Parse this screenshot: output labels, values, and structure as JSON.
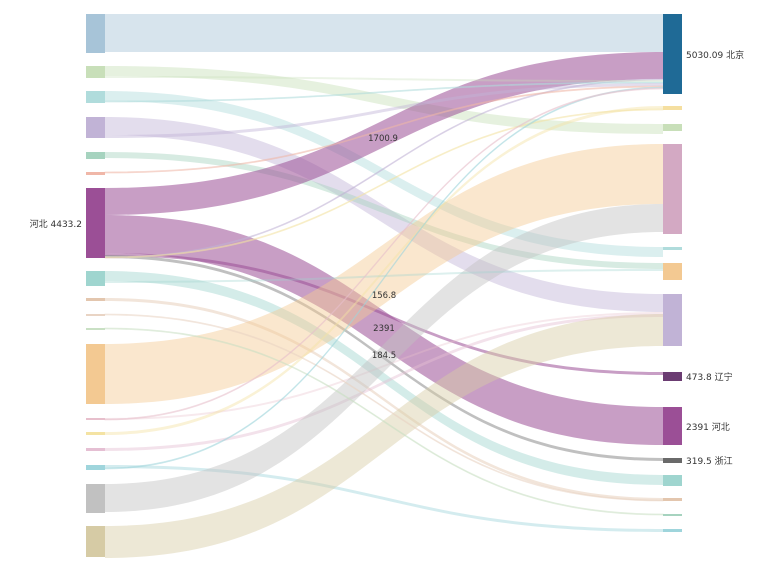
{
  "chart_data": {
    "type": "sankey",
    "title": "",
    "sources": [
      {
        "name": "",
        "color": "#a7c4d8"
      },
      {
        "name": "",
        "color": "#c8dfb9"
      },
      {
        "name": "",
        "color": "#b0dcdc"
      },
      {
        "name": "",
        "color": "#c1b3d6"
      },
      {
        "name": "",
        "color": "#a6d3bf"
      },
      {
        "name": "",
        "color": "#f0b7a8"
      },
      {
        "name": "河北",
        "value": 4433.2,
        "label": "河北 4433.2",
        "color": "#9b4f96"
      },
      {
        "name": "",
        "color": "#9fd5cf"
      },
      {
        "name": "",
        "color": "#e3c6ae"
      },
      {
        "name": "",
        "color": "#e9d4c4"
      },
      {
        "name": "",
        "color": "#c9e0c4"
      },
      {
        "name": "",
        "color": "#f3c992"
      },
      {
        "name": "",
        "color": "#e7bfcc"
      },
      {
        "name": "",
        "color": "#f4e3a3"
      },
      {
        "name": "",
        "color": "#e5bfd3"
      },
      {
        "name": "",
        "color": "#9fd5dc"
      },
      {
        "name": "",
        "color": "#c1c1c1"
      },
      {
        "name": "",
        "color": "#d6cba5"
      }
    ],
    "targets": [
      {
        "name": "北京",
        "value": 5030.09,
        "label": "5030.09 北京",
        "color": "#1f6a96"
      },
      {
        "name": "",
        "color": "#f5dfa0"
      },
      {
        "name": "",
        "color": "#c8dfb9"
      },
      {
        "name": "",
        "color": "#d3a9c3"
      },
      {
        "name": "",
        "color": "#b0dcdc"
      },
      {
        "name": "",
        "color": "#f3c992"
      },
      {
        "name": "",
        "color": "#c1b3d6"
      },
      {
        "name": "辽宁",
        "value": 473.8,
        "label": "473.8 辽宁",
        "color": "#6b3c72"
      },
      {
        "name": "河北",
        "value": 2391,
        "label": "2391 河北",
        "color": "#9b4f96"
      },
      {
        "name": "浙江",
        "value": 319.5,
        "label": "319.5 浙江",
        "color": "#6a6a6a"
      },
      {
        "name": "",
        "color": "#9fd5cf"
      },
      {
        "name": "",
        "color": "#e3c6ae"
      },
      {
        "name": "",
        "color": "#a6d3bf"
      },
      {
        "name": "",
        "color": "#9fd5dc"
      }
    ],
    "links": [
      {
        "source": 0,
        "target": 0,
        "weight": 38,
        "color": "#a7c4d8"
      },
      {
        "source": 1,
        "target": 2,
        "weight": 10,
        "color": "#c8dfb9"
      },
      {
        "source": 2,
        "target": 4,
        "weight": 10,
        "color": "#b0dcdc"
      },
      {
        "source": 3,
        "target": 6,
        "weight": 18,
        "color": "#c1b3d6"
      },
      {
        "source": 4,
        "target": 5,
        "weight": 6,
        "color": "#a6d3bf"
      },
      {
        "source": 6,
        "target": 0,
        "value": 1700.9,
        "label": "1700.9",
        "weight": 27,
        "color": "#9b4f96"
      },
      {
        "source": 6,
        "target": 8,
        "value": 2391,
        "label": "2391",
        "weight": 38,
        "color": "#9b4f96"
      },
      {
        "source": 6,
        "target": 7,
        "value": 156.8,
        "label": "156.8",
        "weight": 3,
        "color": "#9b4f96"
      },
      {
        "source": 6,
        "target": 9,
        "value": 184.5,
        "label": "184.5",
        "weight": 3,
        "color": "#8c8c8c"
      },
      {
        "source": 7,
        "target": 10,
        "weight": 10,
        "color": "#9fd5cf"
      },
      {
        "source": 8,
        "target": 11,
        "weight": 3,
        "color": "#e3c6ae"
      },
      {
        "source": 11,
        "target": 3,
        "weight": 60,
        "color": "#f3c992"
      },
      {
        "source": 12,
        "target": 6,
        "weight": 2,
        "color": "#e7bfcc"
      },
      {
        "source": 13,
        "target": 1,
        "weight": 3,
        "color": "#f4e3a3"
      },
      {
        "source": 14,
        "target": 6,
        "weight": 3,
        "color": "#e5bfd3"
      },
      {
        "source": 15,
        "target": 13,
        "weight": 3,
        "color": "#9fd5dc"
      },
      {
        "source": 16,
        "target": 3,
        "weight": 28,
        "color": "#c1c1c1"
      },
      {
        "source": 17,
        "target": 6,
        "weight": 32,
        "color": "#d6cba5"
      },
      {
        "source": 6,
        "target": 0,
        "weight": 1,
        "color": "#c1b3d6"
      },
      {
        "source": 6,
        "target": 1,
        "weight": 1,
        "color": "#f4e3a3"
      },
      {
        "source": 1,
        "target": 0,
        "weight": 2,
        "color": "#c8dfb9"
      },
      {
        "source": 2,
        "target": 0,
        "weight": 1,
        "color": "#b0dcdc"
      },
      {
        "source": 3,
        "target": 0,
        "weight": 3,
        "color": "#c1b3d6"
      },
      {
        "source": 5,
        "target": 0,
        "weight": 1,
        "color": "#f0b7a8"
      },
      {
        "source": 7,
        "target": 5,
        "weight": 2,
        "color": "#9fd5cf"
      },
      {
        "source": 9,
        "target": 11,
        "weight": 1,
        "color": "#e9d4c4"
      },
      {
        "source": 10,
        "target": 12,
        "weight": 1,
        "color": "#c9e0c4"
      },
      {
        "source": 15,
        "target": 0,
        "weight": 1,
        "color": "#9fd5dc"
      },
      {
        "source": 12,
        "target": 0,
        "weight": 1,
        "color": "#e7bfcc"
      }
    ]
  }
}
